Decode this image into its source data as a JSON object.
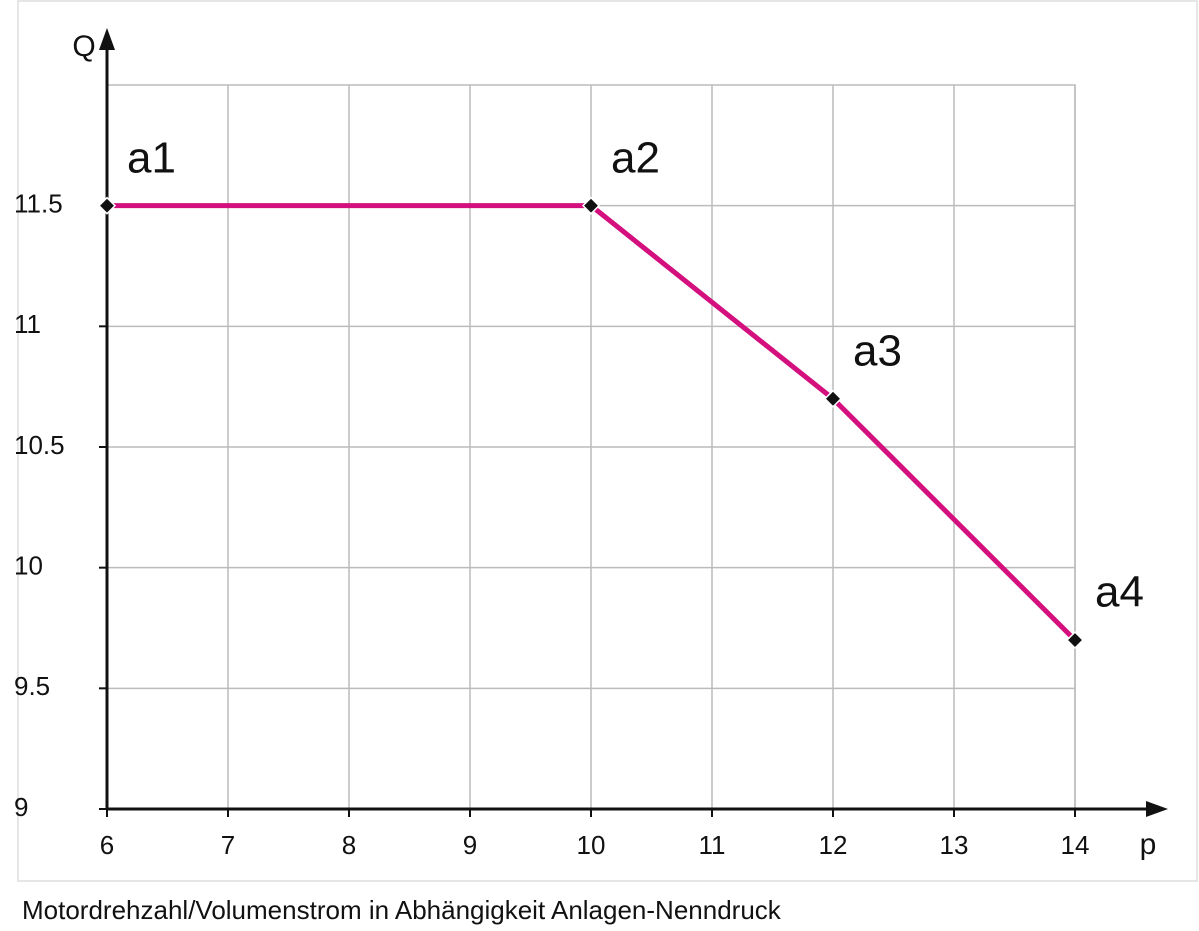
{
  "chart_data": {
    "type": "line",
    "caption": "Motordrehzahl/Volumenstrom in Abhängigkeit Anlagen-Nenndruck",
    "x_label": "p",
    "y_label": "Q",
    "x": [
      6,
      10,
      12,
      14
    ],
    "series": [
      {
        "color": "#d4107e",
        "values": [
          11.5,
          11.5,
          10.7,
          9.7
        ],
        "point_labels": [
          "a1",
          "a2",
          "a3",
          "a4"
        ]
      }
    ],
    "xlim": [
      6,
      14
    ],
    "xticks": [
      6,
      7,
      8,
      9,
      10,
      11,
      12,
      13,
      14
    ],
    "ylim": [
      9,
      12
    ],
    "yticks": [
      9,
      9.5,
      10,
      10.5,
      11,
      11.5
    ],
    "grid": true
  }
}
